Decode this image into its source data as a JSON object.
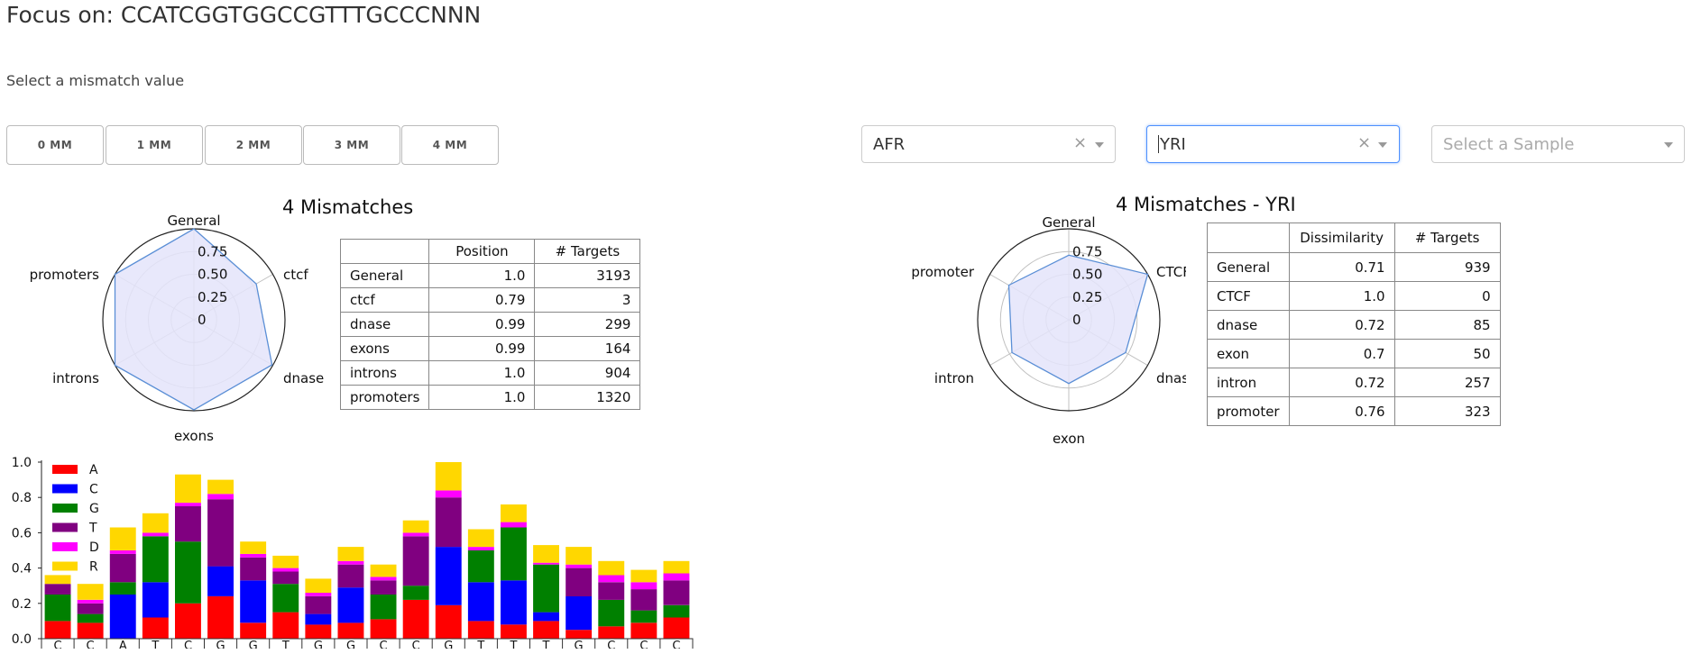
{
  "header": {
    "title": "Focus on: CCATCGGTGGCCGTTTGCCCNNN",
    "mismatch_prompt": "Select a mismatch value"
  },
  "mismatch_buttons": [
    "0 MM",
    "1 MM",
    "2 MM",
    "3 MM",
    "4 MM"
  ],
  "filters": {
    "population": {
      "value": "AFR",
      "clear": "×"
    },
    "superpopulation": {
      "value": "YRI",
      "clear": "×"
    },
    "sample": {
      "placeholder": "Select a Sample"
    }
  },
  "left_panel": {
    "title": "4 Mismatches",
    "table_headers": [
      "",
      "Position",
      "# Targets"
    ],
    "rows": [
      [
        "General",
        "1.0",
        "3193"
      ],
      [
        "ctcf",
        "0.79",
        "3"
      ],
      [
        "dnase",
        "0.99",
        "299"
      ],
      [
        "exons",
        "0.99",
        "164"
      ],
      [
        "introns",
        "1.0",
        "904"
      ],
      [
        "promoters",
        "1.0",
        "1320"
      ]
    ]
  },
  "right_panel": {
    "title": "4 Mismatches - YRI",
    "table_headers": [
      "",
      "Dissimilarity",
      "# Targets"
    ],
    "rows": [
      [
        "General",
        "0.71",
        "939"
      ],
      [
        "CTCF",
        "1.0",
        "0"
      ],
      [
        "dnase",
        "0.72",
        "85"
      ],
      [
        "exon",
        "0.7",
        "50"
      ],
      [
        "intron",
        "0.72",
        "257"
      ],
      [
        "promoter",
        "0.76",
        "323"
      ]
    ]
  },
  "chart_data": [
    {
      "type": "radar",
      "axes": [
        "General",
        "ctcf",
        "dnase",
        "exons",
        "introns",
        "promoters"
      ],
      "values": [
        1.0,
        0.79,
        0.99,
        0.99,
        1.0,
        1.0
      ],
      "ticks": [
        "0",
        "0.25",
        "0.50",
        "0.75"
      ],
      "tick_values": [
        0,
        0.25,
        0.5,
        0.75
      ],
      "fill_color": "#e4e4fa",
      "line_color": "#5b8fd6"
    },
    {
      "type": "radar",
      "axes": [
        "General",
        "CTCF",
        "dnase",
        "exon",
        "intron",
        "promoter"
      ],
      "values": [
        0.71,
        1.0,
        0.72,
        0.7,
        0.72,
        0.76
      ],
      "ticks": [
        "0",
        "0.25",
        "0.50",
        "0.75"
      ],
      "tick_values": [
        0,
        0.25,
        0.5,
        0.75
      ],
      "fill_color": "#e4e4fa",
      "line_color": "#5b8fd6"
    },
    {
      "type": "bar",
      "stacked": true,
      "categories": [
        "C",
        "C",
        "A",
        "T",
        "C",
        "G",
        "G",
        "T",
        "G",
        "G",
        "C",
        "C",
        "G",
        "T",
        "T",
        "T",
        "G",
        "C",
        "C",
        "C"
      ],
      "ylim": [
        0,
        1.0
      ],
      "yticks": [
        "0.0",
        "0.2",
        "0.4",
        "0.6",
        "0.8",
        "1.0"
      ],
      "ytick_values": [
        0,
        0.2,
        0.4,
        0.6,
        0.8,
        1.0
      ],
      "legend_position": "top-left",
      "series": [
        {
          "name": "A",
          "color": "#ff0000",
          "values": [
            0.1,
            0.09,
            0.0,
            0.12,
            0.2,
            0.24,
            0.09,
            0.15,
            0.08,
            0.09,
            0.11,
            0.22,
            0.19,
            0.1,
            0.08,
            0.1,
            0.05,
            0.07,
            0.09,
            0.12
          ]
        },
        {
          "name": "C",
          "color": "#0000ff",
          "values": [
            0.0,
            0.0,
            0.25,
            0.2,
            0.0,
            0.17,
            0.24,
            0.0,
            0.06,
            0.2,
            0.0,
            0.0,
            0.33,
            0.22,
            0.25,
            0.05,
            0.19,
            0.0,
            0.0,
            0.0
          ]
        },
        {
          "name": "G",
          "color": "#008000",
          "values": [
            0.15,
            0.05,
            0.07,
            0.26,
            0.35,
            0.0,
            0.0,
            0.16,
            0.0,
            0.0,
            0.14,
            0.08,
            0.0,
            0.18,
            0.3,
            0.27,
            0.0,
            0.15,
            0.07,
            0.07
          ]
        },
        {
          "name": "T",
          "color": "#800080",
          "values": [
            0.06,
            0.06,
            0.16,
            0.0,
            0.2,
            0.38,
            0.13,
            0.07,
            0.1,
            0.13,
            0.08,
            0.28,
            0.28,
            0.0,
            0.0,
            0.0,
            0.16,
            0.1,
            0.12,
            0.14
          ]
        },
        {
          "name": "D",
          "color": "#ff00ff",
          "values": [
            0.0,
            0.02,
            0.02,
            0.02,
            0.02,
            0.03,
            0.02,
            0.02,
            0.02,
            0.02,
            0.02,
            0.02,
            0.04,
            0.02,
            0.03,
            0.01,
            0.02,
            0.04,
            0.04,
            0.04
          ]
        },
        {
          "name": "R",
          "color": "#ffd700",
          "values": [
            0.05,
            0.09,
            0.13,
            0.11,
            0.16,
            0.08,
            0.07,
            0.07,
            0.08,
            0.08,
            0.07,
            0.07,
            0.16,
            0.1,
            0.1,
            0.1,
            0.1,
            0.08,
            0.07,
            0.07
          ]
        }
      ]
    }
  ]
}
